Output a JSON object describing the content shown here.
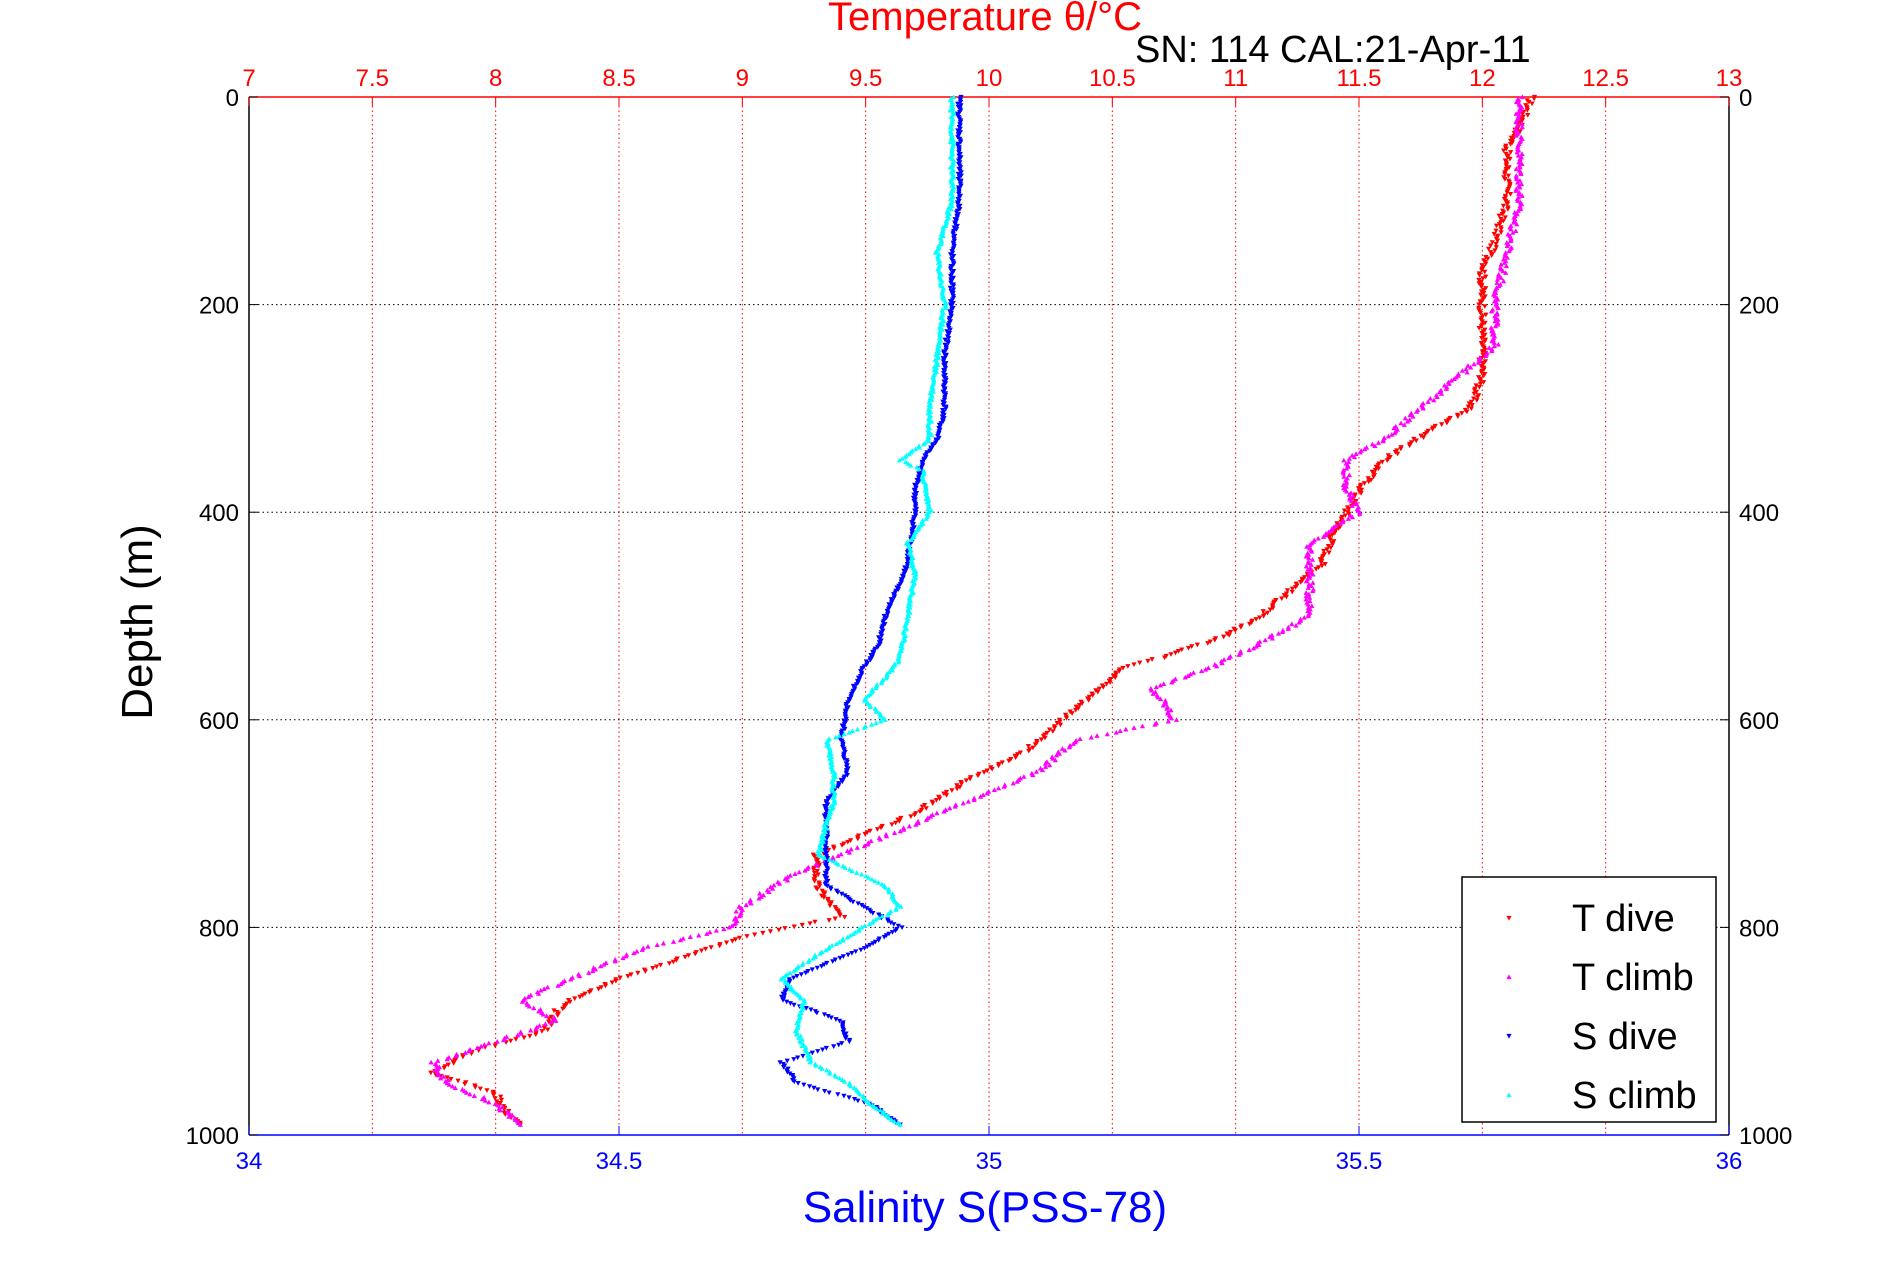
{
  "chart_data": {
    "type": "scatter",
    "title": "Temperature θ/°C",
    "subtitle": "SN: 114  CAL:21-Apr-11",
    "xlabel": "Salinity S(PSS-78)",
    "ylabel": "Depth (m)",
    "top_axis": {
      "range": [
        7,
        13
      ],
      "ticks": [
        "7",
        "7.5",
        "8",
        "8.5",
        "9",
        "9.5",
        "10",
        "10.5",
        "11",
        "11.5",
        "12",
        "12.5",
        "13"
      ],
      "color": "#ff0000"
    },
    "bottom_axis": {
      "range": [
        34,
        36
      ],
      "ticks": [
        "34",
        "34.5",
        "35",
        "35.5",
        "36"
      ],
      "color": "#0000ff"
    },
    "y_axis": {
      "range": [
        0,
        1000
      ],
      "reversed": true,
      "ticks": [
        "0",
        "200",
        "400",
        "600",
        "800",
        "1000"
      ]
    },
    "grid": true,
    "legend_position": "bottom-right",
    "series": [
      {
        "name": "T dive",
        "axis": "temperature",
        "color": "#ff0000",
        "marker": "triangle-down",
        "depth": [
          0,
          30,
          50,
          100,
          140,
          170,
          200,
          250,
          270,
          300,
          320,
          350,
          380,
          400,
          420,
          450,
          480,
          500,
          520,
          540,
          550,
          570,
          600,
          630,
          660,
          690,
          710,
          730,
          760,
          790,
          810,
          830,
          850,
          870,
          880,
          900,
          920,
          940,
          960,
          980,
          990
        ],
        "values": [
          12.2,
          12.15,
          12.1,
          12.1,
          12.05,
          12.0,
          12.0,
          12.0,
          12.0,
          11.95,
          11.8,
          11.6,
          11.5,
          11.45,
          11.4,
          11.35,
          11.2,
          11.1,
          10.95,
          10.7,
          10.55,
          10.45,
          10.3,
          10.15,
          9.9,
          9.7,
          9.5,
          9.3,
          9.3,
          9.4,
          9.0,
          8.75,
          8.5,
          8.3,
          8.25,
          8.2,
          7.9,
          7.75,
          8.0,
          8.05,
          8.1
        ]
      },
      {
        "name": "T climb",
        "axis": "temperature",
        "color": "#ff00ff",
        "marker": "triangle-up",
        "depth": [
          0,
          50,
          100,
          150,
          200,
          240,
          270,
          300,
          330,
          350,
          380,
          400,
          430,
          460,
          500,
          520,
          550,
          570,
          580,
          600,
          620,
          650,
          690,
          720,
          750,
          780,
          800,
          820,
          850,
          870,
          890,
          910,
          930,
          950,
          970,
          990
        ],
        "values": [
          12.15,
          12.15,
          12.15,
          12.1,
          12.05,
          12.05,
          11.9,
          11.75,
          11.6,
          11.45,
          11.45,
          11.5,
          11.3,
          11.3,
          11.3,
          11.15,
          10.9,
          10.65,
          10.7,
          10.75,
          10.35,
          10.2,
          9.8,
          9.5,
          9.2,
          9.0,
          8.95,
          8.6,
          8.3,
          8.1,
          8.25,
          8.0,
          7.75,
          7.8,
          8.0,
          8.1
        ]
      },
      {
        "name": "S dive",
        "axis": "salinity",
        "color": "#0000ff",
        "marker": "triangle-down",
        "depth": [
          0,
          50,
          100,
          150,
          200,
          250,
          300,
          330,
          350,
          380,
          400,
          450,
          500,
          530,
          550,
          580,
          620,
          650,
          680,
          700,
          730,
          760,
          780,
          800,
          820,
          850,
          870,
          890,
          910,
          930,
          950,
          970,
          990
        ],
        "values": [
          34.96,
          34.96,
          34.96,
          34.95,
          34.95,
          34.94,
          34.94,
          34.93,
          34.91,
          34.9,
          34.9,
          34.89,
          34.86,
          34.85,
          34.83,
          34.81,
          34.8,
          34.81,
          34.78,
          34.78,
          34.78,
          34.78,
          34.83,
          34.88,
          34.83,
          34.73,
          34.72,
          34.8,
          34.81,
          34.72,
          34.74,
          34.84,
          34.88
        ]
      },
      {
        "name": "S climb",
        "axis": "salinity",
        "color": "#00ffff",
        "marker": "triangle-up",
        "depth": [
          0,
          50,
          100,
          150,
          200,
          250,
          300,
          330,
          350,
          360,
          400,
          430,
          460,
          500,
          540,
          560,
          580,
          600,
          620,
          650,
          680,
          700,
          730,
          760,
          780,
          800,
          830,
          850,
          870,
          900,
          930,
          950,
          970,
          990
        ],
        "values": [
          34.95,
          34.95,
          34.95,
          34.93,
          34.94,
          34.93,
          34.92,
          34.92,
          34.88,
          34.91,
          34.92,
          34.89,
          34.9,
          34.89,
          34.88,
          34.86,
          34.83,
          34.86,
          34.78,
          34.79,
          34.79,
          34.78,
          34.77,
          34.86,
          34.88,
          34.83,
          34.76,
          34.72,
          34.75,
          34.74,
          34.76,
          34.81,
          34.84,
          34.88
        ]
      }
    ]
  }
}
